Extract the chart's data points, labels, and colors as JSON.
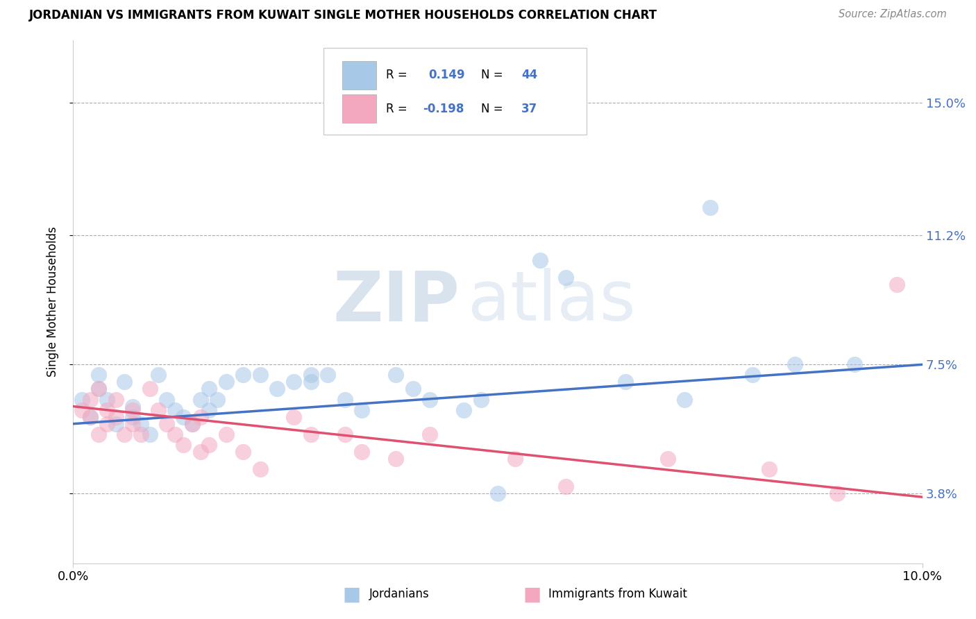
{
  "title": "JORDANIAN VS IMMIGRANTS FROM KUWAIT SINGLE MOTHER HOUSEHOLDS CORRELATION CHART",
  "source": "Source: ZipAtlas.com",
  "ylabel": "Single Mother Households",
  "xlim": [
    0.0,
    0.1
  ],
  "ylim": [
    0.018,
    0.168
  ],
  "ytick_labels": [
    "3.8%",
    "7.5%",
    "11.2%",
    "15.0%"
  ],
  "ytick_vals": [
    0.038,
    0.075,
    0.112,
    0.15
  ],
  "R_jordanian": 0.149,
  "N_jordanian": 44,
  "R_kuwait": -0.198,
  "N_kuwait": 37,
  "color_jordanian": "#a8c8e8",
  "color_kuwait": "#f4a8c0",
  "line_color_blue": "#4472c4",
  "line_color_pink": "#e05070",
  "jordanian_x": [
    0.001,
    0.002,
    0.003,
    0.003,
    0.004,
    0.005,
    0.006,
    0.007,
    0.007,
    0.008,
    0.009,
    0.01,
    0.011,
    0.012,
    0.013,
    0.014,
    0.015,
    0.016,
    0.016,
    0.017,
    0.018,
    0.02,
    0.022,
    0.024,
    0.026,
    0.028,
    0.028,
    0.03,
    0.032,
    0.034,
    0.038,
    0.04,
    0.042,
    0.046,
    0.048,
    0.05,
    0.055,
    0.058,
    0.065,
    0.072,
    0.075,
    0.08,
    0.085,
    0.092
  ],
  "jordanian_y": [
    0.065,
    0.06,
    0.072,
    0.068,
    0.065,
    0.058,
    0.07,
    0.06,
    0.063,
    0.058,
    0.055,
    0.072,
    0.065,
    0.062,
    0.06,
    0.058,
    0.065,
    0.062,
    0.068,
    0.065,
    0.07,
    0.072,
    0.072,
    0.068,
    0.07,
    0.07,
    0.072,
    0.072,
    0.065,
    0.062,
    0.072,
    0.068,
    0.065,
    0.062,
    0.065,
    0.038,
    0.105,
    0.1,
    0.07,
    0.065,
    0.12,
    0.072,
    0.075,
    0.075
  ],
  "kuwait_x": [
    0.001,
    0.002,
    0.002,
    0.003,
    0.003,
    0.004,
    0.004,
    0.005,
    0.005,
    0.006,
    0.007,
    0.007,
    0.008,
    0.009,
    0.01,
    0.011,
    0.012,
    0.013,
    0.014,
    0.015,
    0.015,
    0.016,
    0.018,
    0.02,
    0.022,
    0.026,
    0.028,
    0.032,
    0.034,
    0.038,
    0.042,
    0.052,
    0.058,
    0.07,
    0.082,
    0.09,
    0.097
  ],
  "kuwait_y": [
    0.062,
    0.065,
    0.06,
    0.068,
    0.055,
    0.062,
    0.058,
    0.065,
    0.06,
    0.055,
    0.062,
    0.058,
    0.055,
    0.068,
    0.062,
    0.058,
    0.055,
    0.052,
    0.058,
    0.06,
    0.05,
    0.052,
    0.055,
    0.05,
    0.045,
    0.06,
    0.055,
    0.055,
    0.05,
    0.048,
    0.055,
    0.048,
    0.04,
    0.048,
    0.045,
    0.038,
    0.098
  ],
  "jline_x0": 0.0,
  "jline_x1": 0.1,
  "jline_y0": 0.058,
  "jline_y1": 0.075,
  "kline_x0": 0.0,
  "kline_x1": 0.1,
  "kline_y0": 0.063,
  "kline_y1": 0.037
}
